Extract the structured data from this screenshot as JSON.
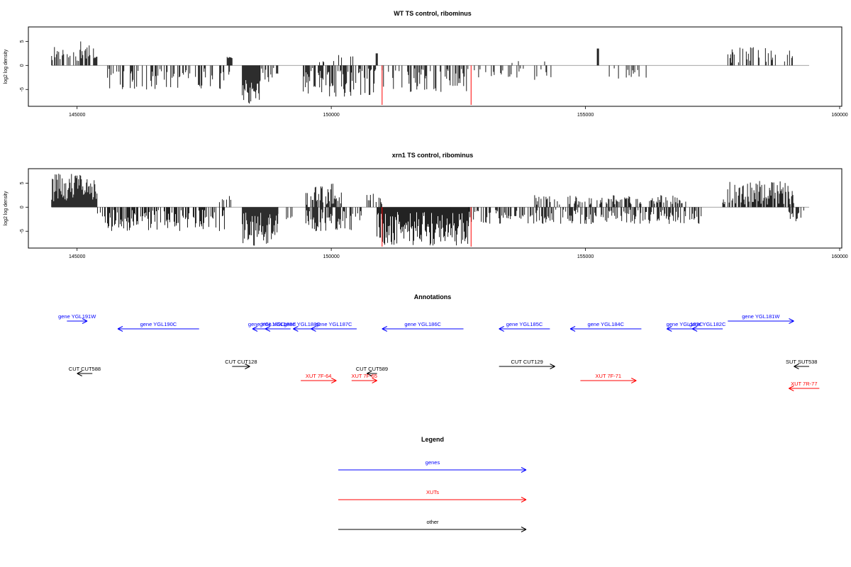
{
  "chart_data": [
    {
      "type": "bar",
      "title": "WT TS control, ribominus",
      "xlabel": "",
      "ylabel": "log2 log density",
      "xlim": [
        144000,
        160000
      ],
      "ylim": [
        -8.5,
        8
      ],
      "xticks": [
        145000,
        150000,
        155000,
        160000
      ],
      "yticks": [
        -5,
        0,
        5
      ],
      "baseline_range": [
        144500,
        159400
      ],
      "red_markers": [
        {
          "x": 151000,
          "y": -8.2
        },
        {
          "x": 152750,
          "y": -8.2
        }
      ],
      "segments": [
        {
          "from": 144500,
          "to": 145350,
          "min": 0.8,
          "max": 5.0,
          "sign": 1,
          "density": 0.5,
          "seed": 11
        },
        {
          "from": 145350,
          "to": 145400,
          "min": 1.5,
          "max": 2.0,
          "sign": 1,
          "density": 0.8,
          "seed": 12
        },
        {
          "from": 145600,
          "to": 148000,
          "min": 0.5,
          "max": 5.0,
          "sign": -1,
          "density": 0.35,
          "seed": 13
        },
        {
          "from": 147950,
          "to": 148050,
          "min": 1.5,
          "max": 2.0,
          "sign": 1,
          "density": 0.8,
          "seed": 14
        },
        {
          "from": 148250,
          "to": 148600,
          "min": 3.0,
          "max": 8.0,
          "sign": -1,
          "density": 1.0,
          "seed": 15
        },
        {
          "from": 148600,
          "to": 148950,
          "min": 0.5,
          "max": 4.0,
          "sign": -1,
          "density": 0.5,
          "seed": 16
        },
        {
          "from": 149450,
          "to": 150900,
          "min": 0.5,
          "max": 6.5,
          "sign": -1,
          "density": 0.6,
          "seed": 17
        },
        {
          "from": 149700,
          "to": 150600,
          "min": 0.5,
          "max": 2.2,
          "sign": 1,
          "density": 0.1,
          "seed": 18
        },
        {
          "from": 150880,
          "to": 150920,
          "min": 2.5,
          "max": 2.5,
          "sign": 1,
          "density": 1.0,
          "seed": 19
        },
        {
          "from": 151000,
          "to": 152700,
          "min": 0.5,
          "max": 6.0,
          "sign": -1,
          "density": 0.45,
          "seed": 20
        },
        {
          "from": 152800,
          "to": 154400,
          "min": 0.5,
          "max": 3.0,
          "sign": -1,
          "density": 0.2,
          "seed": 21
        },
        {
          "from": 153500,
          "to": 154300,
          "min": 0.5,
          "max": 1.0,
          "sign": 1,
          "density": 0.05,
          "seed": 22
        },
        {
          "from": 155230,
          "to": 155260,
          "min": 3.5,
          "max": 3.5,
          "sign": 1,
          "density": 1.0,
          "seed": 23
        },
        {
          "from": 155300,
          "to": 156200,
          "min": 0.5,
          "max": 3.0,
          "sign": -1,
          "density": 0.15,
          "seed": 24
        },
        {
          "from": 157800,
          "to": 159100,
          "min": 0.5,
          "max": 3.8,
          "sign": 1,
          "density": 0.45,
          "seed": 25
        }
      ]
    },
    {
      "type": "bar",
      "title": "xrn1 TS control, ribominus",
      "xlabel": "",
      "ylabel": "log2 log density",
      "xlim": [
        144000,
        160000
      ],
      "ylim": [
        -8.5,
        8
      ],
      "xticks": [
        145000,
        150000,
        155000,
        160000
      ],
      "yticks": [
        -5,
        0,
        5
      ],
      "baseline_range": [
        144500,
        159400
      ],
      "red_markers": [
        {
          "x": 151000,
          "y": -8.2
        },
        {
          "x": 152750,
          "y": -8.2
        }
      ],
      "segments": [
        {
          "from": 144500,
          "to": 145400,
          "min": 1.0,
          "max": 7.0,
          "sign": 1,
          "density": 1.0,
          "seed": 31
        },
        {
          "from": 145400,
          "to": 147900,
          "min": 0.5,
          "max": 5.0,
          "sign": -1,
          "density": 0.6,
          "seed": 32
        },
        {
          "from": 147800,
          "to": 148100,
          "min": 0.5,
          "max": 2.5,
          "sign": 1,
          "density": 0.3,
          "seed": 33
        },
        {
          "from": 148250,
          "to": 148950,
          "min": 1.0,
          "max": 8.0,
          "sign": -1,
          "density": 1.0,
          "seed": 34
        },
        {
          "from": 148950,
          "to": 149300,
          "min": 0.5,
          "max": 2.5,
          "sign": -1,
          "density": 0.3,
          "seed": 35
        },
        {
          "from": 149500,
          "to": 150200,
          "min": 0.5,
          "max": 5.0,
          "sign": 1,
          "density": 0.6,
          "seed": 36
        },
        {
          "from": 149500,
          "to": 150600,
          "min": 0.5,
          "max": 5.0,
          "sign": -1,
          "density": 0.6,
          "seed": 37
        },
        {
          "from": 150900,
          "to": 152700,
          "min": 1.0,
          "max": 8.0,
          "sign": -1,
          "density": 1.0,
          "seed": 38
        },
        {
          "from": 150700,
          "to": 151000,
          "min": 0.5,
          "max": 3.0,
          "sign": 1,
          "density": 0.4,
          "seed": 39
        },
        {
          "from": 152700,
          "to": 157300,
          "min": 0.5,
          "max": 3.5,
          "sign": -1,
          "density": 0.55,
          "seed": 40
        },
        {
          "from": 154000,
          "to": 157000,
          "min": 0.5,
          "max": 2.5,
          "sign": 1,
          "density": 0.4,
          "seed": 41
        },
        {
          "from": 157700,
          "to": 159100,
          "min": 0.5,
          "max": 5.5,
          "sign": 1,
          "density": 0.8,
          "seed": 42
        },
        {
          "from": 159000,
          "to": 159300,
          "min": 0.5,
          "max": 3.0,
          "sign": -1,
          "density": 0.5,
          "seed": 43
        }
      ]
    }
  ],
  "annotations": {
    "title": "Annotations",
    "xlim": [
      144000,
      160000
    ],
    "features": [
      {
        "label": "gene YGL191W",
        "from": 144800,
        "to": 145200,
        "dir": "right",
        "type": "gene",
        "row": 0
      },
      {
        "label": "gene YGL190C",
        "from": 145800,
        "to": 147400,
        "dir": "left",
        "type": "gene",
        "row": 1
      },
      {
        "label": "gene YGL189C",
        "from": 148450,
        "to": 149000,
        "dir": "left",
        "type": "gene",
        "row": 1
      },
      {
        "label": "gene YGL188C",
        "from": 148700,
        "to": 149200,
        "dir": "left",
        "type": "gene",
        "row": 1
      },
      {
        "label": "gene YGL188C",
        "from": 149250,
        "to": 149600,
        "dir": "left",
        "type": "gene",
        "row": 1
      },
      {
        "label": "gene YGL187C",
        "from": 149600,
        "to": 150500,
        "dir": "left",
        "type": "gene",
        "row": 1
      },
      {
        "label": "gene YGL186C",
        "from": 151000,
        "to": 152600,
        "dir": "left",
        "type": "gene",
        "row": 1
      },
      {
        "label": "gene YGL185C",
        "from": 153300,
        "to": 154300,
        "dir": "left",
        "type": "gene",
        "row": 1
      },
      {
        "label": "gene YGL184C",
        "from": 154700,
        "to": 156100,
        "dir": "left",
        "type": "gene",
        "row": 1
      },
      {
        "label": "gene YGL183C",
        "from": 156600,
        "to": 157300,
        "dir": "left",
        "type": "gene",
        "row": 1
      },
      {
        "label": "gene YGL182C",
        "from": 157100,
        "to": 157700,
        "dir": "left",
        "type": "gene",
        "row": 1
      },
      {
        "label": "gene YGL181W",
        "from": 157800,
        "to": 159100,
        "dir": "right",
        "type": "gene",
        "row": 0
      },
      {
        "label": "CUT CUT588",
        "from": 145000,
        "to": 145300,
        "dir": "left",
        "type": "other",
        "row": 3
      },
      {
        "label": "CUT CUT128",
        "from": 148050,
        "to": 148400,
        "dir": "right",
        "type": "other",
        "row": 2
      },
      {
        "label": "CUT CUT589",
        "from": 150700,
        "to": 150900,
        "dir": "left",
        "type": "other",
        "row": 3
      },
      {
        "label": "CUT CUT129",
        "from": 153300,
        "to": 154400,
        "dir": "right",
        "type": "other",
        "row": 2
      },
      {
        "label": "SUT SUT538",
        "from": 159100,
        "to": 159400,
        "dir": "left",
        "type": "other",
        "row": 2
      },
      {
        "label": "XUT 7F-64",
        "from": 149400,
        "to": 150100,
        "dir": "right",
        "type": "xut",
        "row": 4
      },
      {
        "label": "XUT 7F-65",
        "from": 150400,
        "to": 150900,
        "dir": "right",
        "type": "xut",
        "row": 4
      },
      {
        "label": "XUT 7F-71",
        "from": 154900,
        "to": 156000,
        "dir": "right",
        "type": "xut",
        "row": 4
      },
      {
        "label": "XUT 7R-77",
        "from": 159000,
        "to": 159600,
        "dir": "left",
        "type": "xut",
        "row": 5
      }
    ]
  },
  "legend": {
    "title": "Legend",
    "items": [
      {
        "label": "genes",
        "color": "#0000ff"
      },
      {
        "label": "XUTs",
        "color": "#ff0000"
      },
      {
        "label": "other",
        "color": "#000000"
      }
    ]
  },
  "colors": {
    "gene": "#0000ff",
    "xut": "#ff0000",
    "other": "#000000",
    "bars": "#000000",
    "markers": "#ff0000",
    "baseline": "#999999"
  }
}
